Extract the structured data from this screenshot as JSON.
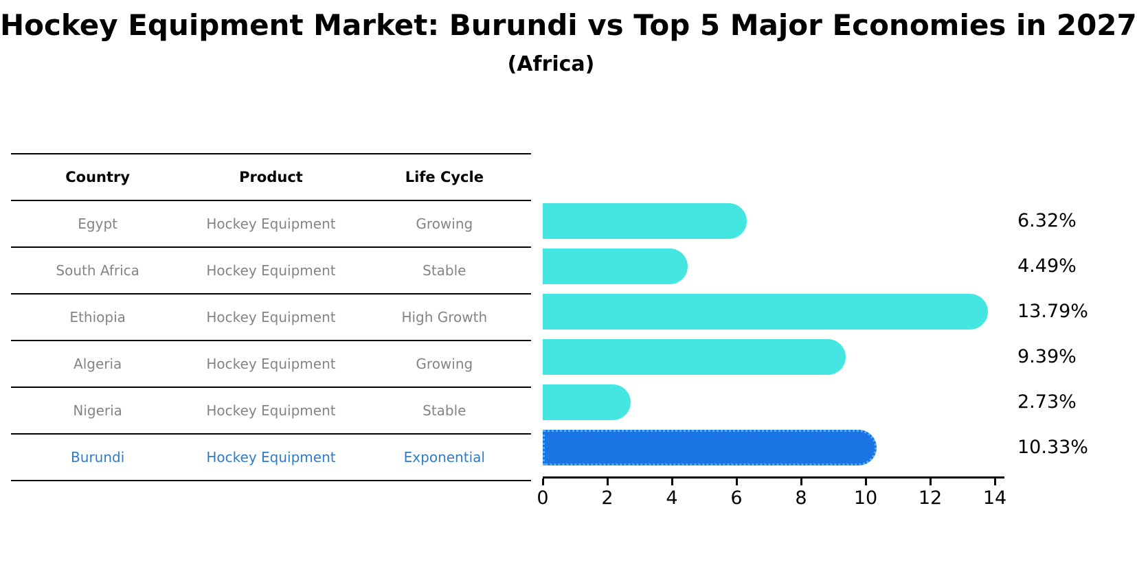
{
  "title": "Hockey Equipment Market: Burundi vs Top 5 Major Economies in 2027",
  "subtitle": "(Africa)",
  "table": {
    "headers": [
      "Country",
      "Product",
      "Life Cycle"
    ],
    "rows": [
      {
        "country": "Egypt",
        "product": "Hockey Equipment",
        "life_cycle": "Growing",
        "highlight": false
      },
      {
        "country": "South Africa",
        "product": "Hockey Equipment",
        "life_cycle": "Stable",
        "highlight": false
      },
      {
        "country": "Ethiopia",
        "product": "Hockey Equipment",
        "life_cycle": "High Growth",
        "highlight": false
      },
      {
        "country": "Algeria",
        "product": "Hockey Equipment",
        "life_cycle": "Growing",
        "highlight": false
      },
      {
        "country": "Nigeria",
        "product": "Hockey Equipment",
        "life_cycle": "Stable",
        "highlight": false
      },
      {
        "country": "Burundi",
        "product": "Hockey Equipment",
        "life_cycle": "Exponential",
        "highlight": true
      }
    ]
  },
  "chart_data": {
    "type": "bar",
    "orientation": "horizontal",
    "categories": [
      "Egypt",
      "South Africa",
      "Ethiopia",
      "Algeria",
      "Nigeria",
      "Burundi"
    ],
    "values": [
      6.32,
      4.49,
      13.79,
      9.39,
      2.73,
      10.33
    ],
    "labels": [
      "6.32%",
      "4.49%",
      "13.79%",
      "9.39%",
      "2.73%",
      "10.33%"
    ],
    "title": "Hockey Equipment Market: Burundi vs Top 5 Major Economies in 2027",
    "subtitle": "(Africa)",
    "xlabel": "",
    "ylabel": "",
    "xlim": [
      0,
      14.3
    ],
    "xticks": [
      0,
      2,
      4,
      6,
      8,
      10,
      12,
      14
    ],
    "grid": false,
    "legend": false,
    "bar_color": "#45E6E1",
    "highlight_index": 5,
    "highlight_color": "#1B74E4",
    "highlight_border_color": "#55AFEE",
    "text_color_highlight": "#2f7cc6",
    "text_color_muted": "#848484"
  }
}
